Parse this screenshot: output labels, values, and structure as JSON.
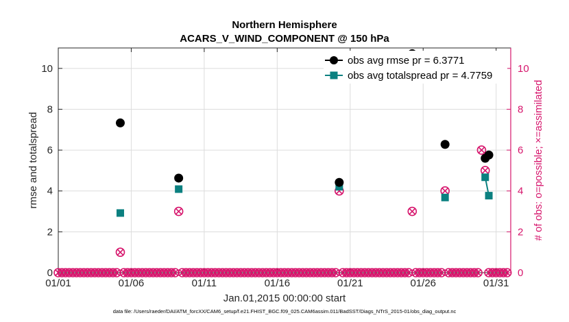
{
  "chart_data": {
    "type": "scatter",
    "title": "Northern Hemisphere",
    "subtitle": "ACARS_V_WIND_COMPONENT @ 150 hPa",
    "xlabel": "Jan.01,2015 00:00:00 start",
    "ylabel": "rmse and totalspread",
    "ylabel_right": "# of obs: o=possible; ×=assimilated",
    "xlim": [
      1,
      32
    ],
    "ylim": [
      0,
      11
    ],
    "ylim_right": [
      0,
      11
    ],
    "x_ticks": [
      1,
      6,
      11,
      16,
      21,
      26,
      31
    ],
    "x_tick_labels": [
      "01/01",
      "01/06",
      "01/11",
      "01/16",
      "01/21",
      "01/26",
      "01/31"
    ],
    "y_ticks": [
      0,
      2,
      4,
      6,
      8,
      10
    ],
    "y_tick_labels": [
      "0",
      "2",
      "4",
      "6",
      "8",
      "10"
    ],
    "y_ticks_right": [
      0,
      2,
      4,
      6,
      8,
      10
    ],
    "y_tick_labels_right": [
      "0",
      "2",
      "4",
      "6",
      "8",
      "10"
    ],
    "grid": true,
    "legend_position": "top-right",
    "legend": [
      "obs avg rmse  pr = 6.3771",
      "obs avg totalspread pr = 4.7759"
    ],
    "series": [
      {
        "name": "obs avg rmse  pr = 6.3771",
        "color": "#000000",
        "marker": "circle",
        "x": [
          5.25,
          9.25,
          20.25,
          25.25,
          27.5,
          30.25,
          30.5
        ],
        "y": [
          7.33,
          4.63,
          4.42,
          10.72,
          6.28,
          5.6,
          5.76
        ]
      },
      {
        "name": "obs avg totalspread pr = 4.7759",
        "color": "#0b8080",
        "marker": "square",
        "x": [
          5.25,
          9.25,
          20.25,
          25.25,
          27.5,
          30.25,
          30.5
        ],
        "y": [
          2.92,
          4.09,
          4.21,
          10.27,
          3.68,
          4.67,
          3.77
        ]
      },
      {
        "name": "",
        "axis": "right",
        "color": "#d6156c",
        "marker": "circle-cross",
        "x": [
          1.0,
          1.25,
          1.5,
          1.75,
          2.0,
          2.25,
          2.5,
          2.75,
          3.0,
          3.25,
          3.5,
          3.75,
          4.0,
          4.25,
          4.5,
          4.75,
          5.0,
          5.25,
          5.5,
          5.75,
          6.0,
          6.25,
          6.5,
          6.75,
          7.0,
          7.25,
          7.5,
          7.75,
          8.0,
          8.25,
          8.5,
          8.75,
          9.0,
          9.25,
          9.5,
          9.75,
          10.0,
          10.25,
          10.5,
          10.75,
          11.0,
          11.25,
          11.5,
          11.75,
          12.0,
          12.25,
          12.5,
          12.75,
          13.0,
          13.25,
          13.5,
          13.75,
          14.0,
          14.25,
          14.5,
          14.75,
          15.0,
          15.25,
          15.5,
          15.75,
          16.0,
          16.25,
          16.5,
          16.75,
          17.0,
          17.25,
          17.5,
          17.75,
          18.0,
          18.25,
          18.5,
          18.75,
          19.0,
          19.25,
          19.5,
          19.75,
          20.0,
          20.25,
          20.5,
          20.75,
          21.0,
          21.25,
          21.5,
          21.75,
          22.0,
          22.25,
          22.5,
          22.75,
          23.0,
          23.25,
          23.5,
          23.75,
          24.0,
          24.25,
          24.5,
          24.75,
          25.0,
          25.25,
          25.5,
          25.75,
          26.0,
          26.25,
          26.5,
          26.75,
          27.0,
          27.25,
          27.5,
          27.75,
          28.0,
          28.25,
          28.5,
          28.75,
          29.0,
          29.25,
          29.5,
          29.75,
          30.0,
          30.25,
          30.5,
          30.75,
          31.0,
          31.25,
          31.5,
          31.75
        ],
        "y": [
          0,
          0,
          0,
          0,
          0,
          0,
          0,
          0,
          0,
          0,
          0,
          0,
          0,
          0,
          0,
          0,
          0,
          1,
          0,
          0,
          0,
          0,
          0,
          0,
          0,
          0,
          0,
          0,
          0,
          0,
          0,
          0,
          0,
          3,
          0,
          0,
          0,
          0,
          0,
          0,
          0,
          0,
          0,
          0,
          0,
          0,
          0,
          0,
          0,
          0,
          0,
          0,
          0,
          0,
          0,
          0,
          0,
          0,
          0,
          0,
          0,
          0,
          0,
          0,
          0,
          0,
          0,
          0,
          0,
          0,
          0,
          0,
          0,
          0,
          0,
          0,
          0,
          4,
          0,
          0,
          0,
          0,
          0,
          0,
          0,
          0,
          0,
          0,
          0,
          0,
          0,
          0,
          0,
          0,
          0,
          0,
          0,
          3,
          0,
          0,
          0,
          0,
          0,
          0,
          0,
          0,
          4,
          0,
          0,
          0,
          0,
          0,
          0,
          0,
          0,
          0,
          6,
          5,
          0,
          0,
          0,
          0,
          0,
          0
        ]
      }
    ],
    "footnote": "data file: /Users/raeder/DAI/ATM_forcXX/CAM6_setup/f.e21.FHIST_BGC.f09_025.CAM6assim.011/BadSST/Diags_NTrS_2015-01/obs_diag_output.nc"
  }
}
